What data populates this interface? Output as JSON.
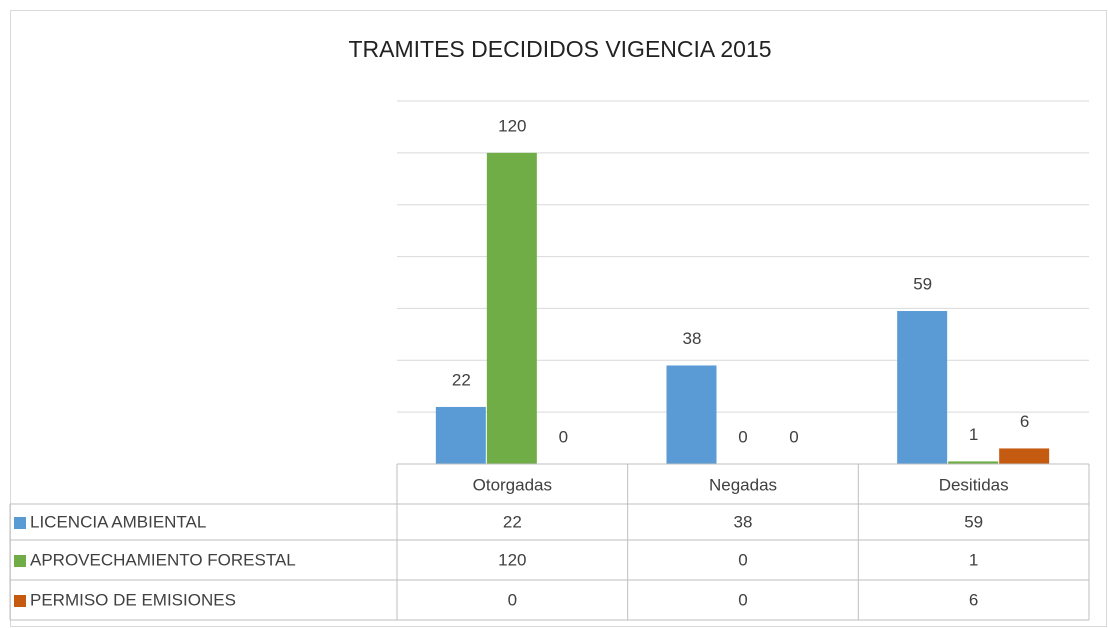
{
  "chart_data": {
    "type": "bar",
    "title": "TRAMITES DECIDIDOS VIGENCIA 2015",
    "categories": [
      "Otorgadas",
      "Negadas",
      "Desitidas"
    ],
    "series": [
      {
        "name": "LICENCIA AMBIENTAL",
        "color": "#5b9bd5",
        "values": [
          22,
          38,
          59
        ]
      },
      {
        "name": "APROVECHAMIENTO FORESTAL",
        "color": "#70ad47",
        "values": [
          120,
          0,
          1
        ]
      },
      {
        "name": "PERMISO DE EMISIONES",
        "color": "#c55a11",
        "values": [
          0,
          0,
          6
        ]
      }
    ],
    "ylim": [
      0,
      140
    ],
    "yticks": [
      0,
      20,
      40,
      60,
      80,
      100,
      120,
      140
    ],
    "grid": true,
    "data_table": true
  }
}
